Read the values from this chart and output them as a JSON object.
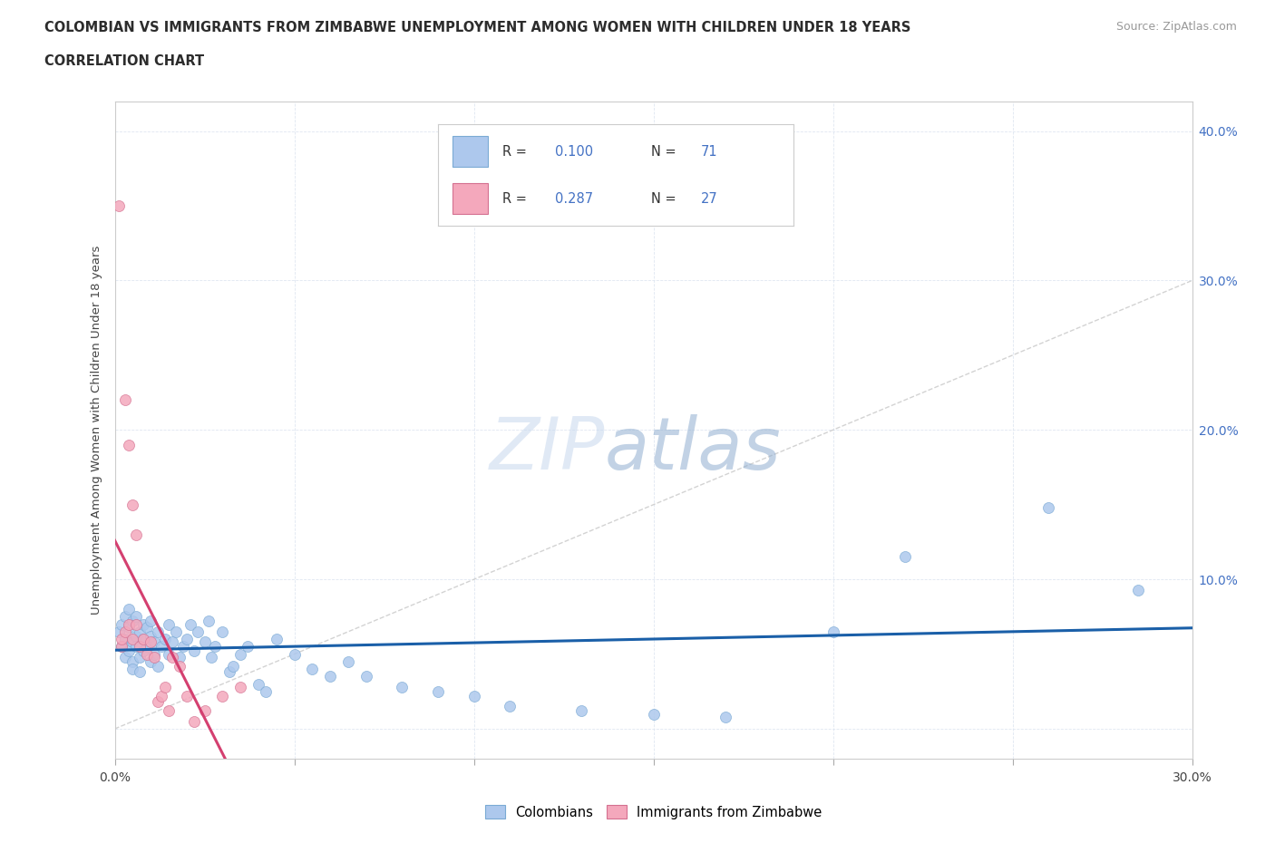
{
  "title_line1": "COLOMBIAN VS IMMIGRANTS FROM ZIMBABWE UNEMPLOYMENT AMONG WOMEN WITH CHILDREN UNDER 18 YEARS",
  "title_line2": "CORRELATION CHART",
  "source": "Source: ZipAtlas.com",
  "ylabel": "Unemployment Among Women with Children Under 18 years",
  "xlim": [
    0.0,
    0.3
  ],
  "ylim": [
    -0.02,
    0.42
  ],
  "r_colombian": 0.1,
  "n_colombian": 71,
  "r_zimbabwe": 0.287,
  "n_zimbabwe": 27,
  "color_colombian": "#adc8ed",
  "color_zimbabwe": "#f4a8bc",
  "edge_colombian": "#7aaad4",
  "edge_zimbabwe": "#d47090",
  "trendline_colombian": "#1a5fa8",
  "trendline_zimbabwe": "#d44070",
  "diagonal_color": "#c8c8c8",
  "background_color": "#ffffff",
  "colombian_x": [
    0.001,
    0.002,
    0.002,
    0.003,
    0.003,
    0.003,
    0.004,
    0.004,
    0.004,
    0.005,
    0.005,
    0.005,
    0.005,
    0.006,
    0.006,
    0.006,
    0.007,
    0.007,
    0.007,
    0.008,
    0.008,
    0.008,
    0.009,
    0.009,
    0.01,
    0.01,
    0.01,
    0.011,
    0.011,
    0.012,
    0.012,
    0.013,
    0.014,
    0.015,
    0.015,
    0.016,
    0.017,
    0.018,
    0.019,
    0.02,
    0.021,
    0.022,
    0.023,
    0.025,
    0.026,
    0.027,
    0.028,
    0.03,
    0.032,
    0.033,
    0.035,
    0.037,
    0.04,
    0.042,
    0.045,
    0.05,
    0.055,
    0.06,
    0.065,
    0.07,
    0.08,
    0.09,
    0.1,
    0.11,
    0.13,
    0.15,
    0.17,
    0.2,
    0.22,
    0.26,
    0.285
  ],
  "colombian_y": [
    0.065,
    0.055,
    0.07,
    0.048,
    0.06,
    0.075,
    0.052,
    0.068,
    0.08,
    0.045,
    0.058,
    0.072,
    0.04,
    0.062,
    0.055,
    0.075,
    0.048,
    0.065,
    0.038,
    0.052,
    0.07,
    0.06,
    0.055,
    0.068,
    0.045,
    0.062,
    0.072,
    0.058,
    0.05,
    0.065,
    0.042,
    0.055,
    0.06,
    0.05,
    0.07,
    0.058,
    0.065,
    0.048,
    0.055,
    0.06,
    0.07,
    0.052,
    0.065,
    0.058,
    0.072,
    0.048,
    0.055,
    0.065,
    0.038,
    0.042,
    0.05,
    0.055,
    0.03,
    0.025,
    0.06,
    0.05,
    0.04,
    0.035,
    0.045,
    0.035,
    0.028,
    0.025,
    0.022,
    0.015,
    0.012,
    0.01,
    0.008,
    0.065,
    0.115,
    0.148,
    0.093
  ],
  "zimbabwe_x": [
    0.001,
    0.002,
    0.002,
    0.003,
    0.003,
    0.004,
    0.004,
    0.005,
    0.005,
    0.006,
    0.006,
    0.007,
    0.008,
    0.009,
    0.01,
    0.011,
    0.012,
    0.013,
    0.014,
    0.015,
    0.016,
    0.018,
    0.02,
    0.022,
    0.025,
    0.03,
    0.035
  ],
  "zimbabwe_y": [
    0.35,
    0.055,
    0.06,
    0.22,
    0.065,
    0.19,
    0.07,
    0.15,
    0.06,
    0.13,
    0.07,
    0.055,
    0.06,
    0.05,
    0.058,
    0.048,
    0.018,
    0.022,
    0.028,
    0.012,
    0.048,
    0.042,
    0.022,
    0.005,
    0.012,
    0.022,
    0.028
  ]
}
